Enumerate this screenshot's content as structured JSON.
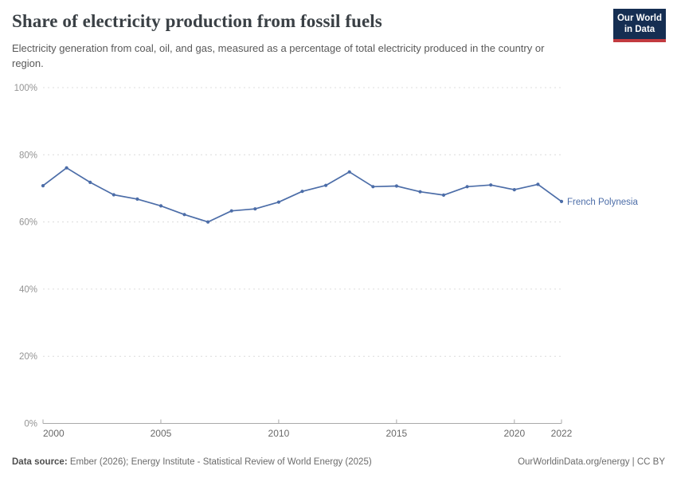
{
  "header": {
    "title": "Share of electricity production from fossil fuels",
    "subtitle": "Electricity generation from coal, oil, and gas, measured as a percentage of total electricity produced in the country or region.",
    "logo": {
      "line1": "Our World",
      "line2": "in Data",
      "bg_color": "#152e52",
      "accent_color": "#c23b40"
    }
  },
  "chart_data": {
    "type": "line",
    "title": "Share of electricity production from fossil fuels",
    "xlabel": "",
    "ylabel": "",
    "xlim": [
      2000,
      2022
    ],
    "ylim": [
      0,
      100
    ],
    "grid": "horizontal-dashed",
    "legend": "label-at-line-end",
    "xticks": [
      2000,
      2005,
      2010,
      2015,
      2020,
      2022
    ],
    "yticks": [
      "0%",
      "20%",
      "40%",
      "60%",
      "80%",
      "100%"
    ],
    "series": [
      {
        "name": "French Polynesia",
        "color": "#4c6da8",
        "x": [
          2000,
          2001,
          2002,
          2003,
          2004,
          2005,
          2006,
          2007,
          2008,
          2009,
          2010,
          2011,
          2012,
          2013,
          2014,
          2015,
          2016,
          2017,
          2018,
          2019,
          2020,
          2021,
          2022
        ],
        "values": [
          70.8,
          76.1,
          71.8,
          68.1,
          66.8,
          64.8,
          62.2,
          60.0,
          63.3,
          63.9,
          65.9,
          69.1,
          70.9,
          74.9,
          70.5,
          70.7,
          69.0,
          68.0,
          70.5,
          71.0,
          69.6,
          71.2,
          66.1
        ]
      }
    ]
  },
  "footer": {
    "source_label": "Data source:",
    "source_text": " Ember (2026); Energy Institute - Statistical Review of World Energy (2025)",
    "right_text": "OurWorldinData.org/energy | CC BY"
  }
}
